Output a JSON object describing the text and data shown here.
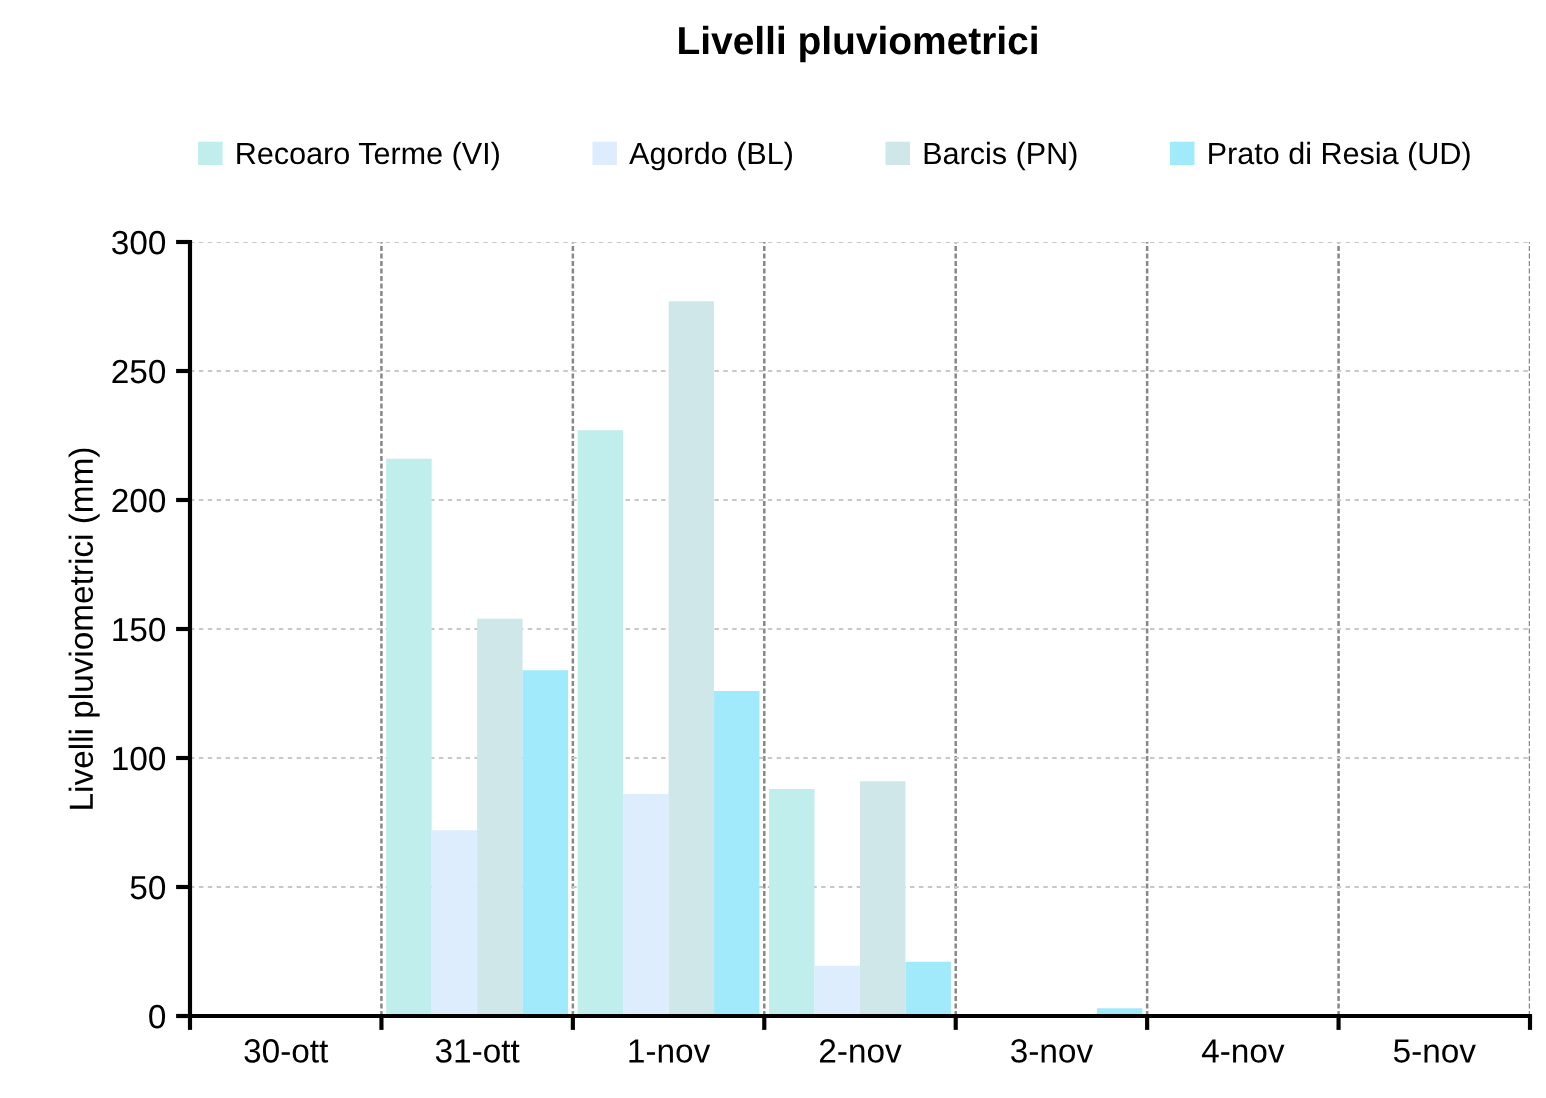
{
  "chart_data": {
    "type": "bar",
    "title": "Livelli pluviometrici",
    "ylabel": "Livelli pluviometrici (mm)",
    "categories": [
      "30-ott",
      "31-ott",
      "1-nov",
      "2-nov",
      "3-nov",
      "4-nov",
      "5-nov"
    ],
    "series": [
      {
        "name": "Recoaro Terme (VI)",
        "color": "#bfeeec",
        "values": [
          0,
          216,
          227,
          88,
          0,
          0,
          0
        ]
      },
      {
        "name": "Agordo (BL)",
        "color": "#ddedfd",
        "values": [
          0,
          72,
          86,
          19.5,
          0,
          0,
          0
        ]
      },
      {
        "name": "Barcis (PN)",
        "color": "#cfe7e8",
        "values": [
          0,
          154,
          277,
          91,
          0,
          0,
          0
        ]
      },
      {
        "name": "Prato di Resia (UD)",
        "color": "#a0eafb",
        "values": [
          0,
          134,
          126,
          21,
          3,
          0,
          0
        ]
      }
    ],
    "ylim": [
      0,
      300
    ],
    "yticks": [
      0,
      50,
      100,
      150,
      200,
      250,
      300
    ],
    "grid": true,
    "legend": "top"
  }
}
